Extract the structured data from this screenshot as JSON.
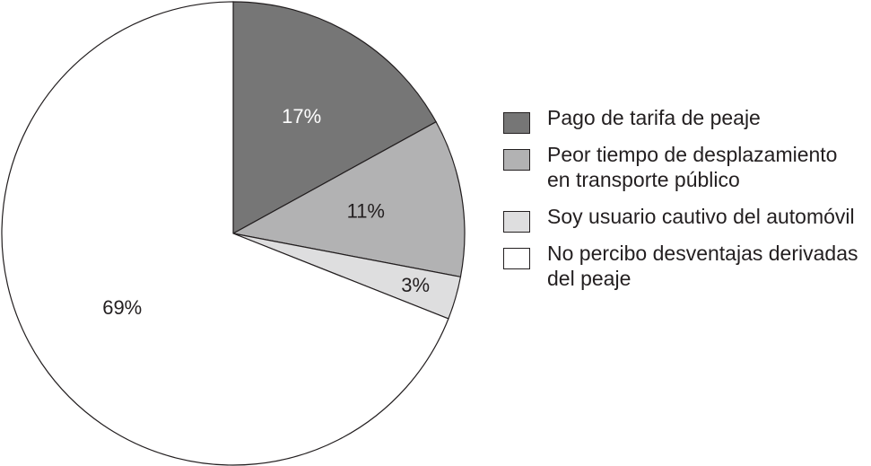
{
  "chart_data": {
    "type": "pie",
    "start_angle_deg": 0,
    "direction": "clockwise",
    "slices": [
      {
        "label": "Pago de tarifa de peaje",
        "value": 17,
        "value_label": "17%",
        "color": "#767676"
      },
      {
        "label": "Peor tiempo de desplazamiento en transporte público",
        "value": 11,
        "value_label": "11%",
        "color": "#b2b2b3"
      },
      {
        "label": "Soy usuario cautivo del automóvil",
        "value": 3,
        "value_label": "3%",
        "color": "#dededf"
      },
      {
        "label": "No percibo desventajas derivadas del peaje",
        "value": 69,
        "value_label": "69%",
        "color": "#ffffff"
      }
    ],
    "legend_position": "right"
  },
  "legend": {
    "items": [
      {
        "lines": [
          "Pago de tarifa de peaje"
        ],
        "color": "#767676"
      },
      {
        "lines": [
          "Peor tiempo de desplazamiento",
          "en transporte público"
        ],
        "color": "#b2b2b3"
      },
      {
        "lines": [
          "Soy usuario cautivo del automóvil"
        ],
        "color": "#dededf"
      },
      {
        "lines": [
          "No percibo desventajas derivadas",
          "del peaje"
        ],
        "color": "#ffffff"
      }
    ]
  }
}
